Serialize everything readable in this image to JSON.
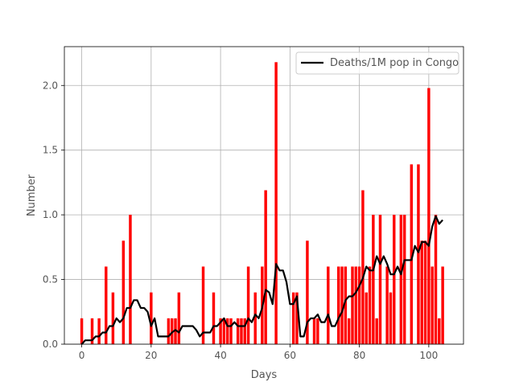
{
  "chart_data": {
    "type": "bar",
    "title": "",
    "xlabel": "Days",
    "ylabel": "Number",
    "xlim": [
      -5,
      110
    ],
    "ylim": [
      0,
      2.3
    ],
    "xticks": [
      0,
      20,
      40,
      60,
      80,
      100
    ],
    "yticks": [
      0.0,
      0.5,
      1.0,
      1.5,
      2.0
    ],
    "xtick_labels": [
      "0",
      "20",
      "40",
      "60",
      "80",
      "100"
    ],
    "ytick_labels": [
      "0.0",
      "0.5",
      "1.0",
      "1.5",
      "2.0"
    ],
    "grid": true,
    "legend_position": "top-right",
    "bar_color": "#ff0000",
    "line_color": "#000000",
    "series": [
      {
        "type": "bar",
        "x": [
          0,
          3,
          5,
          7,
          9,
          12,
          14,
          20,
          25,
          26,
          27,
          28,
          35,
          38,
          40,
          41,
          42,
          43,
          45,
          46,
          47,
          48,
          50,
          52,
          53,
          56,
          61,
          62,
          65,
          67,
          68,
          71,
          74,
          75,
          76,
          77,
          78,
          79,
          80,
          81,
          82,
          83,
          84,
          85,
          86,
          88,
          89,
          90,
          92,
          93,
          95,
          97,
          98,
          99,
          100,
          101,
          102,
          103,
          104
        ],
        "values": [
          0.2,
          0.2,
          0.2,
          0.6,
          0.4,
          0.8,
          1.0,
          0.4,
          0.2,
          0.2,
          0.2,
          0.4,
          0.6,
          0.4,
          0.2,
          0.2,
          0.2,
          0.2,
          0.2,
          0.2,
          0.2,
          0.6,
          0.4,
          0.6,
          1.19,
          2.18,
          0.4,
          0.4,
          0.8,
          0.2,
          0.2,
          0.6,
          0.6,
          0.6,
          0.6,
          0.2,
          0.6,
          0.6,
          0.6,
          1.19,
          0.4,
          0.6,
          1.0,
          0.2,
          1.0,
          0.6,
          0.4,
          1.0,
          1.0,
          1.0,
          1.39,
          1.39,
          0.8,
          0.8,
          1.98,
          0.6,
          1.0,
          0.2,
          0.6
        ]
      },
      {
        "type": "line",
        "name": "Deaths/1M pop in Congo",
        "x": [
          0,
          1,
          2,
          3,
          4,
          5,
          6,
          7,
          8,
          9,
          10,
          11,
          12,
          13,
          14,
          15,
          16,
          17,
          18,
          19,
          20,
          21,
          22,
          23,
          24,
          25,
          26,
          27,
          28,
          29,
          30,
          31,
          32,
          33,
          34,
          35,
          36,
          37,
          38,
          39,
          40,
          41,
          42,
          43,
          44,
          45,
          46,
          47,
          48,
          49,
          50,
          51,
          52,
          53,
          54,
          55,
          56,
          57,
          58,
          59,
          60,
          61,
          62,
          63,
          64,
          65,
          66,
          67,
          68,
          69,
          70,
          71,
          72,
          73,
          74,
          75,
          76,
          77,
          78,
          79,
          80,
          81,
          82,
          83,
          84,
          85,
          86,
          87,
          88,
          89,
          90,
          91,
          92,
          93,
          94,
          95,
          96,
          97,
          98,
          99,
          100,
          101,
          102,
          103,
          104
        ],
        "values": [
          0.0,
          0.03,
          0.03,
          0.03,
          0.06,
          0.06,
          0.09,
          0.09,
          0.14,
          0.14,
          0.2,
          0.17,
          0.2,
          0.28,
          0.28,
          0.34,
          0.34,
          0.28,
          0.28,
          0.25,
          0.14,
          0.2,
          0.06,
          0.06,
          0.06,
          0.06,
          0.09,
          0.11,
          0.09,
          0.14,
          0.14,
          0.14,
          0.14,
          0.11,
          0.06,
          0.09,
          0.09,
          0.09,
          0.14,
          0.14,
          0.17,
          0.2,
          0.14,
          0.14,
          0.17,
          0.14,
          0.14,
          0.14,
          0.2,
          0.17,
          0.23,
          0.2,
          0.28,
          0.42,
          0.4,
          0.31,
          0.62,
          0.57,
          0.57,
          0.48,
          0.31,
          0.31,
          0.37,
          0.06,
          0.06,
          0.17,
          0.2,
          0.2,
          0.23,
          0.17,
          0.17,
          0.23,
          0.14,
          0.14,
          0.2,
          0.25,
          0.34,
          0.37,
          0.37,
          0.4,
          0.45,
          0.51,
          0.6,
          0.57,
          0.57,
          0.68,
          0.62,
          0.68,
          0.62,
          0.54,
          0.54,
          0.6,
          0.54,
          0.65,
          0.65,
          0.65,
          0.76,
          0.71,
          0.79,
          0.79,
          0.76,
          0.91,
          0.99,
          0.93,
          0.96
        ]
      }
    ]
  }
}
